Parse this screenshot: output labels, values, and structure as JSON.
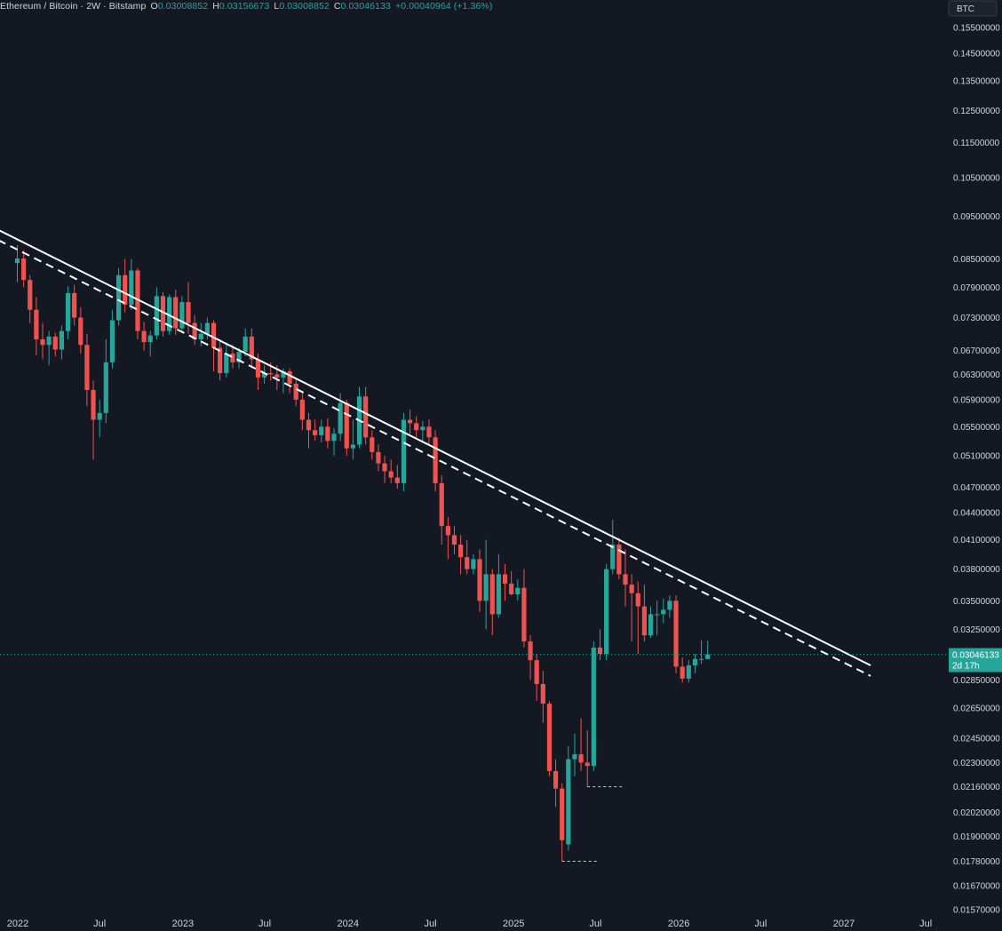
{
  "legend": {
    "symbol": "Ethereum / Bitcoin · 2W · Bitstamp",
    "open_label": "O",
    "open": "0.03008852",
    "high_label": "H",
    "high": "0.03156673",
    "low_label": "L",
    "low": "0.03008852",
    "close_label": "C",
    "close": "0.03046133",
    "change": "+0.00040964 (+1.36%)"
  },
  "currency_badge": "BTC",
  "last_price": {
    "value": "0.03046133",
    "countdown": "2d 17h"
  },
  "colors": {
    "background": "#141823",
    "up": "#26a69a",
    "down": "#ef5350",
    "trendline": "#ffffff",
    "axis_text": "#d1d4dc",
    "price_line": "#26a69a"
  },
  "chart_data": {
    "type": "candlestick",
    "interval": "2W",
    "y_axis": {
      "scale": "log",
      "ticks": [
        0.155,
        0.145,
        0.135,
        0.125,
        0.115,
        0.105,
        0.095,
        0.085,
        0.079,
        0.073,
        0.067,
        0.063,
        0.059,
        0.055,
        0.051,
        0.047,
        0.044,
        0.041,
        0.038,
        0.035,
        0.0325,
        0.0285,
        0.0265,
        0.0245,
        0.023,
        0.0216,
        0.0202,
        0.019,
        0.0178,
        0.0167,
        0.0157
      ],
      "tick_labels": [
        "0.15500000",
        "0.14500000",
        "0.13500000",
        "0.12500000",
        "0.11500000",
        "0.10500000",
        "0.09500000",
        "0.08500000",
        "0.07900000",
        "0.07300000",
        "0.06700000",
        "0.06300000",
        "0.05900000",
        "0.05500000",
        "0.05100000",
        "0.04700000",
        "0.04400000",
        "0.04100000",
        "0.03800000",
        "0.03500000",
        "0.03250000",
        "0.02850000",
        "0.02650000",
        "0.02450000",
        "0.02300000",
        "0.02160000",
        "0.02020000",
        "0.01900000",
        "0.01780000",
        "0.01670000",
        "0.01570000"
      ]
    },
    "x_axis": {
      "labels": [
        {
          "date": "2022-01-01",
          "text": "2022"
        },
        {
          "date": "2022-07-01",
          "text": "Jul"
        },
        {
          "date": "2023-01-01",
          "text": "2023"
        },
        {
          "date": "2023-07-01",
          "text": "Jul"
        },
        {
          "date": "2024-01-01",
          "text": "2024"
        },
        {
          "date": "2024-07-01",
          "text": "Jul"
        },
        {
          "date": "2025-01-01",
          "text": "2025"
        },
        {
          "date": "2025-07-01",
          "text": "Jul"
        },
        {
          "date": "2026-01-01",
          "text": "2026"
        },
        {
          "date": "2026-07-01",
          "text": "Jul"
        },
        {
          "date": "2027-01-01",
          "text": "2027"
        },
        {
          "date": "2027-07-01",
          "text": "Jul"
        }
      ]
    },
    "candles": [
      {
        "d": "2021-12-31",
        "o": 0.0841,
        "h": 0.0881,
        "l": 0.08,
        "c": 0.0851
      },
      {
        "d": "2022-01-14",
        "o": 0.0851,
        "h": 0.0869,
        "l": 0.079,
        "c": 0.0805
      },
      {
        "d": "2022-01-28",
        "o": 0.0805,
        "h": 0.0815,
        "l": 0.072,
        "c": 0.0745
      },
      {
        "d": "2022-02-11",
        "o": 0.0745,
        "h": 0.077,
        "l": 0.0662,
        "c": 0.069
      },
      {
        "d": "2022-02-25",
        "o": 0.069,
        "h": 0.072,
        "l": 0.0655,
        "c": 0.068
      },
      {
        "d": "2022-03-11",
        "o": 0.068,
        "h": 0.0705,
        "l": 0.0645,
        "c": 0.0695
      },
      {
        "d": "2022-03-25",
        "o": 0.0695,
        "h": 0.0702,
        "l": 0.066,
        "c": 0.0672
      },
      {
        "d": "2022-04-08",
        "o": 0.0672,
        "h": 0.0715,
        "l": 0.0655,
        "c": 0.0705
      },
      {
        "d": "2022-04-22",
        "o": 0.0705,
        "h": 0.0792,
        "l": 0.069,
        "c": 0.0778
      },
      {
        "d": "2022-05-06",
        "o": 0.0778,
        "h": 0.0795,
        "l": 0.0715,
        "c": 0.073
      },
      {
        "d": "2022-05-20",
        "o": 0.073,
        "h": 0.075,
        "l": 0.0665,
        "c": 0.068
      },
      {
        "d": "2022-06-03",
        "o": 0.068,
        "h": 0.07,
        "l": 0.058,
        "c": 0.0605
      },
      {
        "d": "2022-06-17",
        "o": 0.0605,
        "h": 0.062,
        "l": 0.0505,
        "c": 0.056
      },
      {
        "d": "2022-07-01",
        "o": 0.056,
        "h": 0.059,
        "l": 0.0535,
        "c": 0.057
      },
      {
        "d": "2022-07-15",
        "o": 0.057,
        "h": 0.069,
        "l": 0.0555,
        "c": 0.065
      },
      {
        "d": "2022-07-29",
        "o": 0.065,
        "h": 0.0745,
        "l": 0.064,
        "c": 0.0725
      },
      {
        "d": "2022-08-12",
        "o": 0.0725,
        "h": 0.083,
        "l": 0.0715,
        "c": 0.0815
      },
      {
        "d": "2022-08-26",
        "o": 0.0815,
        "h": 0.085,
        "l": 0.074,
        "c": 0.0755
      },
      {
        "d": "2022-09-09",
        "o": 0.0755,
        "h": 0.085,
        "l": 0.0745,
        "c": 0.0825
      },
      {
        "d": "2022-09-23",
        "o": 0.0825,
        "h": 0.083,
        "l": 0.069,
        "c": 0.0705
      },
      {
        "d": "2022-10-07",
        "o": 0.0705,
        "h": 0.0722,
        "l": 0.067,
        "c": 0.0685
      },
      {
        "d": "2022-10-21",
        "o": 0.0685,
        "h": 0.0705,
        "l": 0.066,
        "c": 0.0697
      },
      {
        "d": "2022-11-04",
        "o": 0.0697,
        "h": 0.079,
        "l": 0.069,
        "c": 0.0772
      },
      {
        "d": "2022-11-18",
        "o": 0.0772,
        "h": 0.078,
        "l": 0.0695,
        "c": 0.0705
      },
      {
        "d": "2022-12-02",
        "o": 0.0705,
        "h": 0.0775,
        "l": 0.0698,
        "c": 0.077
      },
      {
        "d": "2022-12-16",
        "o": 0.077,
        "h": 0.0785,
        "l": 0.0698,
        "c": 0.071
      },
      {
        "d": "2022-12-30",
        "o": 0.071,
        "h": 0.0772,
        "l": 0.0702,
        "c": 0.076
      },
      {
        "d": "2023-01-13",
        "o": 0.076,
        "h": 0.08,
        "l": 0.07,
        "c": 0.072
      },
      {
        "d": "2023-01-27",
        "o": 0.072,
        "h": 0.0735,
        "l": 0.068,
        "c": 0.069
      },
      {
        "d": "2023-02-10",
        "o": 0.069,
        "h": 0.072,
        "l": 0.0678,
        "c": 0.07
      },
      {
        "d": "2023-02-24",
        "o": 0.07,
        "h": 0.073,
        "l": 0.069,
        "c": 0.072
      },
      {
        "d": "2023-03-10",
        "o": 0.072,
        "h": 0.0725,
        "l": 0.0635,
        "c": 0.0675
      },
      {
        "d": "2023-03-24",
        "o": 0.0675,
        "h": 0.069,
        "l": 0.062,
        "c": 0.0632
      },
      {
        "d": "2023-04-07",
        "o": 0.0632,
        "h": 0.068,
        "l": 0.0625,
        "c": 0.0665
      },
      {
        "d": "2023-04-21",
        "o": 0.0665,
        "h": 0.068,
        "l": 0.064,
        "c": 0.065
      },
      {
        "d": "2023-05-05",
        "o": 0.065,
        "h": 0.0675,
        "l": 0.064,
        "c": 0.0668
      },
      {
        "d": "2023-05-19",
        "o": 0.0668,
        "h": 0.071,
        "l": 0.066,
        "c": 0.0695
      },
      {
        "d": "2023-06-02",
        "o": 0.0695,
        "h": 0.071,
        "l": 0.064,
        "c": 0.0655
      },
      {
        "d": "2023-06-16",
        "o": 0.0655,
        "h": 0.0665,
        "l": 0.0605,
        "c": 0.0625
      },
      {
        "d": "2023-06-30",
        "o": 0.0625,
        "h": 0.0645,
        "l": 0.0615,
        "c": 0.0632
      },
      {
        "d": "2023-07-14",
        "o": 0.0632,
        "h": 0.065,
        "l": 0.062,
        "c": 0.063
      },
      {
        "d": "2023-07-28",
        "o": 0.063,
        "h": 0.0645,
        "l": 0.0605,
        "c": 0.0625
      },
      {
        "d": "2023-08-11",
        "o": 0.0625,
        "h": 0.064,
        "l": 0.06,
        "c": 0.0635
      },
      {
        "d": "2023-08-25",
        "o": 0.0635,
        "h": 0.064,
        "l": 0.06,
        "c": 0.0615
      },
      {
        "d": "2023-09-08",
        "o": 0.0615,
        "h": 0.0625,
        "l": 0.058,
        "c": 0.059
      },
      {
        "d": "2023-09-22",
        "o": 0.059,
        "h": 0.06,
        "l": 0.0545,
        "c": 0.056
      },
      {
        "d": "2023-10-06",
        "o": 0.056,
        "h": 0.057,
        "l": 0.052,
        "c": 0.0545
      },
      {
        "d": "2023-10-20",
        "o": 0.0545,
        "h": 0.056,
        "l": 0.053,
        "c": 0.0538
      },
      {
        "d": "2023-11-03",
        "o": 0.0538,
        "h": 0.056,
        "l": 0.0528,
        "c": 0.055
      },
      {
        "d": "2023-11-17",
        "o": 0.055,
        "h": 0.0562,
        "l": 0.052,
        "c": 0.053
      },
      {
        "d": "2023-12-01",
        "o": 0.053,
        "h": 0.0548,
        "l": 0.051,
        "c": 0.054
      },
      {
        "d": "2023-12-15",
        "o": 0.054,
        "h": 0.06,
        "l": 0.053,
        "c": 0.0585
      },
      {
        "d": "2023-12-29",
        "o": 0.0585,
        "h": 0.059,
        "l": 0.051,
        "c": 0.052
      },
      {
        "d": "2024-01-12",
        "o": 0.052,
        "h": 0.056,
        "l": 0.0505,
        "c": 0.0525
      },
      {
        "d": "2024-01-26",
        "o": 0.0525,
        "h": 0.061,
        "l": 0.052,
        "c": 0.0595
      },
      {
        "d": "2024-02-09",
        "o": 0.0595,
        "h": 0.061,
        "l": 0.0525,
        "c": 0.0535
      },
      {
        "d": "2024-02-23",
        "o": 0.0535,
        "h": 0.0545,
        "l": 0.0505,
        "c": 0.0515
      },
      {
        "d": "2024-03-08",
        "o": 0.0515,
        "h": 0.0525,
        "l": 0.049,
        "c": 0.05
      },
      {
        "d": "2024-03-22",
        "o": 0.05,
        "h": 0.051,
        "l": 0.0475,
        "c": 0.049
      },
      {
        "d": "2024-04-05",
        "o": 0.049,
        "h": 0.0505,
        "l": 0.0475,
        "c": 0.0482
      },
      {
        "d": "2024-04-19",
        "o": 0.0482,
        "h": 0.0498,
        "l": 0.0468,
        "c": 0.0475
      },
      {
        "d": "2024-05-03",
        "o": 0.0475,
        "h": 0.057,
        "l": 0.0465,
        "c": 0.056
      },
      {
        "d": "2024-05-17",
        "o": 0.056,
        "h": 0.0575,
        "l": 0.054,
        "c": 0.0555
      },
      {
        "d": "2024-05-31",
        "o": 0.0555,
        "h": 0.0565,
        "l": 0.0535,
        "c": 0.0545
      },
      {
        "d": "2024-06-14",
        "o": 0.0545,
        "h": 0.0558,
        "l": 0.053,
        "c": 0.055
      },
      {
        "d": "2024-06-28",
        "o": 0.055,
        "h": 0.056,
        "l": 0.0525,
        "c": 0.0535
      },
      {
        "d": "2024-07-12",
        "o": 0.0535,
        "h": 0.0545,
        "l": 0.0465,
        "c": 0.0475
      },
      {
        "d": "2024-07-26",
        "o": 0.0475,
        "h": 0.0485,
        "l": 0.0405,
        "c": 0.0425
      },
      {
        "d": "2024-08-09",
        "o": 0.0425,
        "h": 0.0435,
        "l": 0.039,
        "c": 0.0415
      },
      {
        "d": "2024-08-23",
        "o": 0.0415,
        "h": 0.0425,
        "l": 0.0395,
        "c": 0.0405
      },
      {
        "d": "2024-09-06",
        "o": 0.0405,
        "h": 0.0415,
        "l": 0.0375,
        "c": 0.0392
      },
      {
        "d": "2024-09-20",
        "o": 0.0392,
        "h": 0.041,
        "l": 0.0375,
        "c": 0.038
      },
      {
        "d": "2024-10-04",
        "o": 0.038,
        "h": 0.0395,
        "l": 0.0375,
        "c": 0.039
      },
      {
        "d": "2024-10-18",
        "o": 0.039,
        "h": 0.04,
        "l": 0.034,
        "c": 0.035
      },
      {
        "d": "2024-11-01",
        "o": 0.035,
        "h": 0.041,
        "l": 0.0325,
        "c": 0.0375
      },
      {
        "d": "2024-11-15",
        "o": 0.0375,
        "h": 0.038,
        "l": 0.032,
        "c": 0.0338
      },
      {
        "d": "2024-11-29",
        "o": 0.0338,
        "h": 0.0395,
        "l": 0.0335,
        "c": 0.0375
      },
      {
        "d": "2024-12-13",
        "o": 0.0375,
        "h": 0.0385,
        "l": 0.035,
        "c": 0.0366
      },
      {
        "d": "2024-12-27",
        "o": 0.0366,
        "h": 0.0378,
        "l": 0.0355,
        "c": 0.0356
      },
      {
        "d": "2025-01-10",
        "o": 0.0356,
        "h": 0.037,
        "l": 0.035,
        "c": 0.0362
      },
      {
        "d": "2025-01-24",
        "o": 0.0362,
        "h": 0.038,
        "l": 0.031,
        "c": 0.0315
      },
      {
        "d": "2025-02-07",
        "o": 0.0315,
        "h": 0.032,
        "l": 0.0285,
        "c": 0.03
      },
      {
        "d": "2025-02-21",
        "o": 0.03,
        "h": 0.0305,
        "l": 0.027,
        "c": 0.0282
      },
      {
        "d": "2025-03-07",
        "o": 0.0282,
        "h": 0.0292,
        "l": 0.0255,
        "c": 0.0268
      },
      {
        "d": "2025-03-21",
        "o": 0.0268,
        "h": 0.027,
        "l": 0.0222,
        "c": 0.0225
      },
      {
        "d": "2025-04-04",
        "o": 0.0225,
        "h": 0.0232,
        "l": 0.0205,
        "c": 0.0215
      },
      {
        "d": "2025-04-18",
        "o": 0.0215,
        "h": 0.0218,
        "l": 0.0178,
        "c": 0.0188
      },
      {
        "d": "2025-05-02",
        "o": 0.0186,
        "h": 0.024,
        "l": 0.0183,
        "c": 0.0232
      },
      {
        "d": "2025-05-16",
        "o": 0.0232,
        "h": 0.0248,
        "l": 0.0222,
        "c": 0.0235
      },
      {
        "d": "2025-05-30",
        "o": 0.0235,
        "h": 0.0258,
        "l": 0.0225,
        "c": 0.023
      },
      {
        "d": "2025-06-13",
        "o": 0.023,
        "h": 0.025,
        "l": 0.0216,
        "c": 0.0228
      },
      {
        "d": "2025-06-27",
        "o": 0.0228,
        "h": 0.0315,
        "l": 0.0225,
        "c": 0.031
      },
      {
        "d": "2025-07-11",
        "o": 0.031,
        "h": 0.0325,
        "l": 0.03,
        "c": 0.0305
      },
      {
        "d": "2025-07-25",
        "o": 0.0305,
        "h": 0.0385,
        "l": 0.03,
        "c": 0.038
      },
      {
        "d": "2025-08-08",
        "o": 0.038,
        "h": 0.0432,
        "l": 0.0375,
        "c": 0.0405
      },
      {
        "d": "2025-08-22",
        "o": 0.0405,
        "h": 0.0412,
        "l": 0.037,
        "c": 0.0375
      },
      {
        "d": "2025-09-05",
        "o": 0.0375,
        "h": 0.04,
        "l": 0.0345,
        "c": 0.0365
      },
      {
        "d": "2025-09-19",
        "o": 0.0365,
        "h": 0.0375,
        "l": 0.0315,
        "c": 0.0357
      },
      {
        "d": "2025-10-03",
        "o": 0.0357,
        "h": 0.0368,
        "l": 0.0305,
        "c": 0.0345
      },
      {
        "d": "2025-10-17",
        "o": 0.0345,
        "h": 0.0365,
        "l": 0.0315,
        "c": 0.032
      },
      {
        "d": "2025-10-31",
        "o": 0.032,
        "h": 0.0345,
        "l": 0.0318,
        "c": 0.0338
      },
      {
        "d": "2025-11-14",
        "o": 0.0338,
        "h": 0.035,
        "l": 0.032,
        "c": 0.0338
      },
      {
        "d": "2025-11-28",
        "o": 0.0338,
        "h": 0.0352,
        "l": 0.033,
        "c": 0.0342
      },
      {
        "d": "2025-12-12",
        "o": 0.0342,
        "h": 0.0355,
        "l": 0.0335,
        "c": 0.035
      },
      {
        "d": "2025-12-26",
        "o": 0.035,
        "h": 0.0355,
        "l": 0.029,
        "c": 0.0295
      },
      {
        "d": "2026-01-09",
        "o": 0.0295,
        "h": 0.0302,
        "l": 0.0283,
        "c": 0.0286
      },
      {
        "d": "2026-01-23",
        "o": 0.0286,
        "h": 0.03,
        "l": 0.0283,
        "c": 0.0296
      },
      {
        "d": "2026-02-06",
        "o": 0.0296,
        "h": 0.0305,
        "l": 0.029,
        "c": 0.0301
      },
      {
        "d": "2026-02-20",
        "o": 0.0301,
        "h": 0.0316,
        "l": 0.0297,
        "c": 0.0301
      },
      {
        "d": "2026-03-06",
        "o": 0.03008852,
        "h": 0.03156673,
        "l": 0.03008852,
        "c": 0.03046133
      }
    ],
    "trendlines": [
      {
        "style": "solid",
        "from": {
          "d": "2021-09-01",
          "v": 0.096
        },
        "to": {
          "d": "2027-03-01",
          "v": 0.0296
        }
      },
      {
        "style": "dashed",
        "from": {
          "d": "2021-09-01",
          "v": 0.0935
        },
        "to": {
          "d": "2027-03-01",
          "v": 0.0288
        }
      }
    ],
    "support_lines": [
      {
        "style": "dotted",
        "value": 0.0216,
        "from": "2025-06-13",
        "to": "2025-08-29"
      },
      {
        "style": "dotted",
        "value": 0.0178,
        "from": "2025-04-18",
        "to": "2025-07-04"
      }
    ]
  }
}
